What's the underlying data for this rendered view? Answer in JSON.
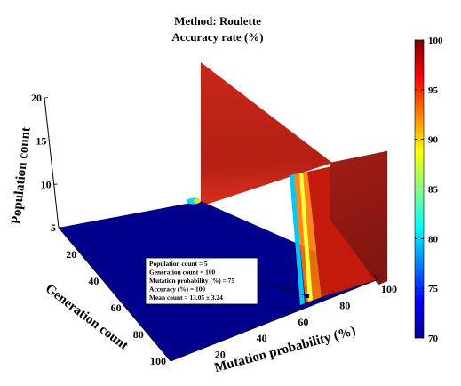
{
  "chart_data": {
    "type": "surface3d-slices",
    "title": "Method: Roulette",
    "subtitle": "Accuracy rate (%)",
    "xlabel": "Mutation probability (%)",
    "ylabel": "Generation count",
    "zlabel": "Population count",
    "xlim": [
      0,
      100
    ],
    "ylim": [
      0,
      100
    ],
    "zlim": [
      5,
      20
    ],
    "x_ticks": [
      "20",
      "40",
      "60",
      "80",
      "100"
    ],
    "y_ticks": [
      "20",
      "40",
      "60",
      "80",
      "100"
    ],
    "z_ticks": [
      "5",
      "10",
      "15",
      "20"
    ],
    "colorbar": {
      "min": 70,
      "max": 100,
      "ticks": [
        "70",
        "75",
        "80",
        "85",
        "90",
        "95",
        "100"
      ],
      "colormap": "jet"
    },
    "slices": [
      {
        "plane": "z",
        "value": 5,
        "description": "accuracy ~70% for mutation probability below ~65%, sharp rise to 100% above"
      },
      {
        "plane": "x",
        "value": 100,
        "description": "accuracy ~99% across generation and population"
      },
      {
        "plane": "y",
        "value": 0,
        "description": "accuracy ~99% across mutation probability and population"
      }
    ],
    "datatip": {
      "lines": [
        "Population count = 5",
        "Generation count = 100",
        "Mutation probability (%) = 75",
        "Accuracy (%) = 100",
        "Mean count = 13.05 ± 3.24"
      ]
    },
    "colors": {
      "low": "#00008f",
      "high": "#8f1a12",
      "plane": "#a31c12"
    }
  }
}
